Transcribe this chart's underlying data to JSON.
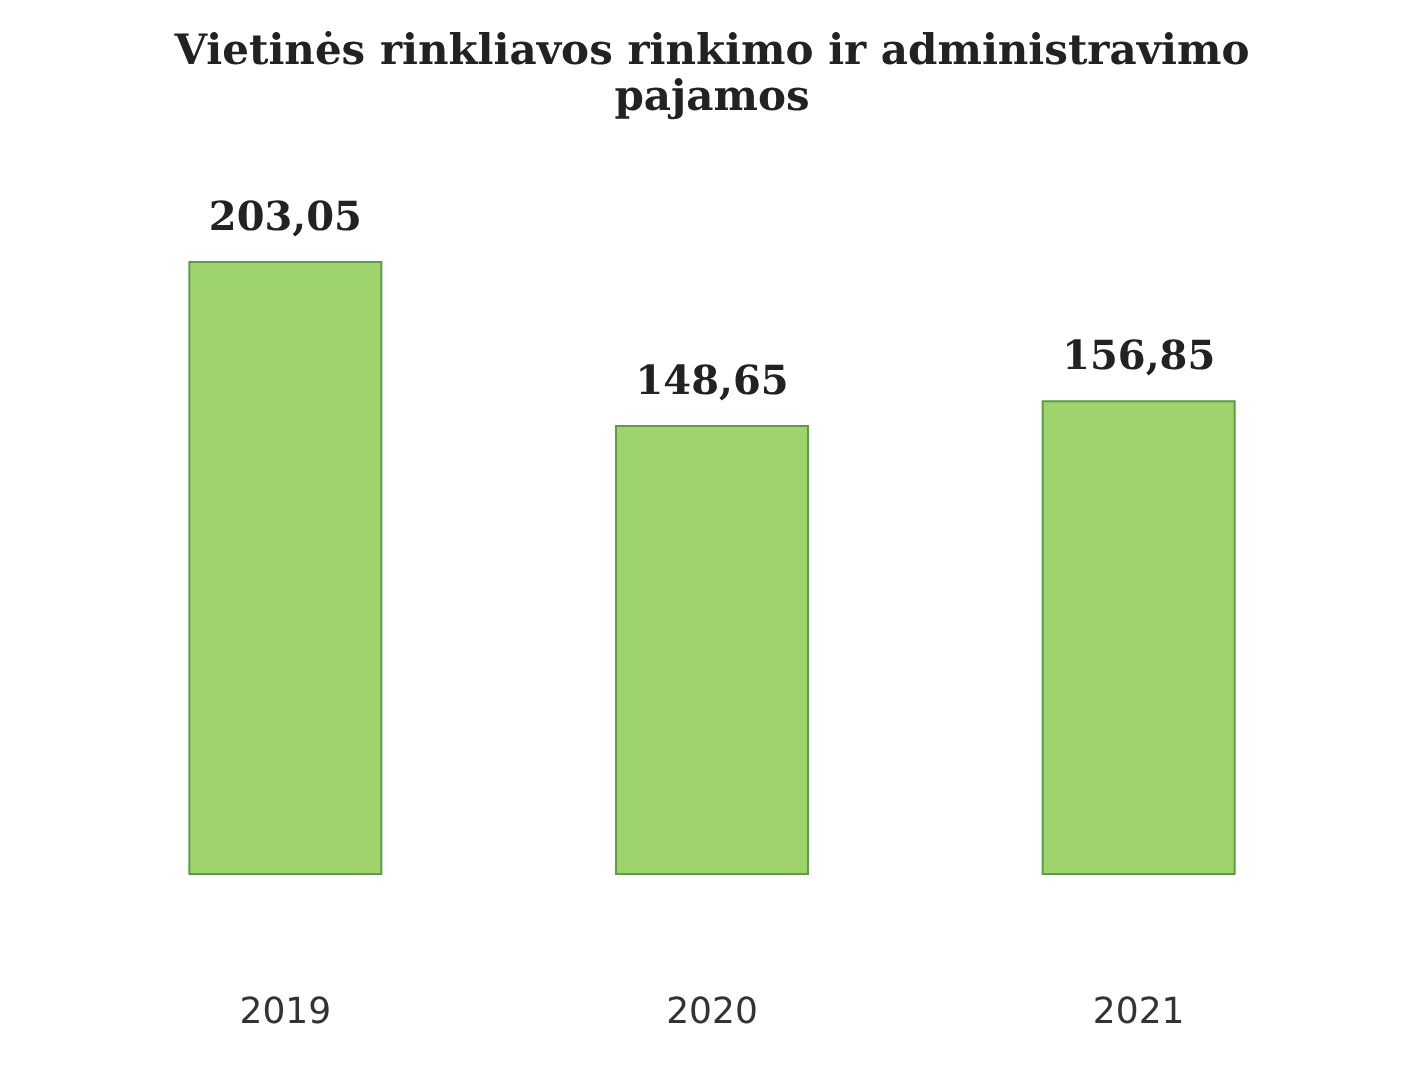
{
  "chart_data": {
    "type": "bar",
    "title": "Vietinės rinkliavos rinkimo ir administravimo pajamos",
    "categories": [
      "2019",
      "2020",
      "2021"
    ],
    "values": [
      203.05,
      148.65,
      156.85
    ],
    "value_labels": [
      "203,05",
      "148,65",
      "156,85"
    ],
    "color": "#9fd36c"
  }
}
